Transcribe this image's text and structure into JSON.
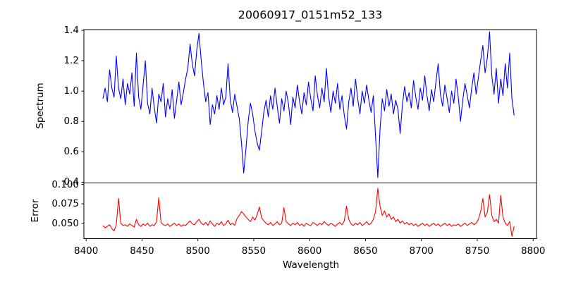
{
  "figure": {
    "title": "20060917_0151m52_133",
    "xlabel": "Wavelength",
    "background": "#ffffff",
    "spine_color": "#000000",
    "text_color": "#000000"
  },
  "chart_data": [
    {
      "type": "line",
      "name": "spectrum",
      "ylabel": "Spectrum",
      "color": "#0000ff",
      "xlim": [
        8398,
        8803
      ],
      "ylim": [
        0.395,
        1.405
      ],
      "yticks": [
        0.4,
        0.6,
        0.8,
        1.0,
        1.2,
        1.4
      ],
      "ytick_labels": [
        "0.4",
        "0.6",
        "0.8",
        "1.0",
        "1.2",
        "1.4"
      ],
      "xticks": [
        8400,
        8450,
        8500,
        8550,
        8600,
        8650,
        8700,
        8750,
        8800
      ],
      "xtick_labels": [],
      "grid": false,
      "x_start": 8415,
      "x_step": 2,
      "values": [
        0.95,
        1.02,
        0.93,
        1.14,
        1.02,
        0.96,
        1.23,
        1.02,
        0.95,
        1.08,
        0.91,
        1.05,
        0.98,
        1.12,
        0.9,
        1.25,
        0.96,
        0.88,
        1.04,
        1.2,
        0.92,
        0.85,
        1.02,
        0.89,
        0.79,
        0.98,
        0.93,
        1.05,
        0.83,
        0.95,
        0.88,
        1.01,
        0.82,
        0.94,
        1.06,
        0.91,
        0.99,
        1.08,
        1.15,
        1.31,
        1.18,
        1.1,
        1.27,
        1.38,
        1.2,
        1.05,
        0.93,
        0.99,
        0.78,
        0.91,
        0.85,
        0.97,
        0.88,
        1.02,
        0.91,
        0.96,
        1.18,
        0.94,
        0.86,
        0.98,
        0.9,
        0.82,
        0.66,
        0.46,
        0.62,
        0.8,
        0.92,
        0.85,
        0.74,
        0.66,
        0.61,
        0.73,
        0.86,
        0.94,
        0.83,
        0.97,
        0.88,
        1.02,
        0.9,
        0.79,
        0.95,
        0.87,
        1.0,
        0.92,
        0.78,
        0.96,
        0.89,
        1.04,
        0.93,
        0.85,
        0.99,
        0.91,
        1.06,
        0.95,
        0.87,
        1.1,
        0.97,
        0.89,
        1.02,
        0.93,
        1.15,
        0.96,
        0.86,
        1.0,
        0.92,
        1.05,
        0.88,
        0.97,
        0.84,
        0.75,
        0.93,
        1.02,
        0.9,
        1.08,
        0.95,
        0.85,
        1.0,
        0.92,
        1.04,
        0.94,
        0.86,
        0.97,
        0.7,
        0.43,
        0.75,
        0.95,
        0.87,
        1.01,
        0.9,
        0.98,
        0.85,
        0.94,
        0.88,
        0.72,
        0.91,
        1.03,
        0.93,
        0.99,
        0.89,
        1.07,
        0.96,
        0.88,
        1.02,
        0.94,
        1.1,
        0.97,
        0.87,
        1.01,
        0.93,
        1.06,
        1.18,
        0.98,
        0.9,
        1.04,
        0.95,
        0.86,
        1.0,
        0.92,
        1.08,
        0.96,
        0.8,
        0.94,
        1.05,
        0.97,
        0.89,
        1.02,
        1.12,
        0.98,
        1.09,
        1.2,
        1.3,
        1.12,
        1.22,
        1.39,
        1.1,
        0.98,
        1.15,
        0.92,
        1.08,
        0.97,
        1.18,
        1.02,
        1.25,
        0.95,
        0.84
      ]
    },
    {
      "type": "line",
      "name": "error",
      "ylabel": "Error",
      "color": "#ff0000",
      "xlim": [
        8398,
        8803
      ],
      "ylim": [
        0.03,
        0.102
      ],
      "yticks": [
        0.05,
        0.075,
        0.1
      ],
      "ytick_labels": [
        "0.050",
        "0.075",
        "0.100"
      ],
      "xticks": [
        8400,
        8450,
        8500,
        8550,
        8600,
        8650,
        8700,
        8750,
        8800
      ],
      "xtick_labels": [
        "8400",
        "8450",
        "8500",
        "8550",
        "8600",
        "8650",
        "8700",
        "8750",
        "8800"
      ],
      "grid": false,
      "x_start": 8415,
      "x_step": 2,
      "values": [
        0.047,
        0.044,
        0.046,
        0.048,
        0.043,
        0.04,
        0.048,
        0.082,
        0.05,
        0.047,
        0.048,
        0.046,
        0.049,
        0.047,
        0.045,
        0.055,
        0.048,
        0.046,
        0.049,
        0.047,
        0.05,
        0.046,
        0.048,
        0.047,
        0.052,
        0.083,
        0.051,
        0.048,
        0.047,
        0.049,
        0.046,
        0.048,
        0.05,
        0.047,
        0.049,
        0.046,
        0.048,
        0.047,
        0.05,
        0.053,
        0.049,
        0.048,
        0.052,
        0.055,
        0.05,
        0.048,
        0.051,
        0.047,
        0.053,
        0.049,
        0.046,
        0.05,
        0.048,
        0.052,
        0.047,
        0.049,
        0.054,
        0.048,
        0.05,
        0.047,
        0.056,
        0.06,
        0.065,
        0.062,
        0.058,
        0.055,
        0.052,
        0.058,
        0.054,
        0.061,
        0.071,
        0.057,
        0.053,
        0.05,
        0.048,
        0.051,
        0.047,
        0.049,
        0.052,
        0.048,
        0.05,
        0.07,
        0.052,
        0.049,
        0.047,
        0.05,
        0.048,
        0.051,
        0.047,
        0.049,
        0.046,
        0.05,
        0.048,
        0.047,
        0.051,
        0.049,
        0.047,
        0.05,
        0.048,
        0.052,
        0.049,
        0.047,
        0.05,
        0.048,
        0.046,
        0.049,
        0.051,
        0.048,
        0.053,
        0.072,
        0.055,
        0.049,
        0.047,
        0.05,
        0.048,
        0.051,
        0.047,
        0.049,
        0.052,
        0.048,
        0.05,
        0.055,
        0.065,
        0.095,
        0.072,
        0.06,
        0.066,
        0.058,
        0.062,
        0.055,
        0.058,
        0.052,
        0.055,
        0.05,
        0.053,
        0.049,
        0.051,
        0.048,
        0.05,
        0.047,
        0.049,
        0.046,
        0.048,
        0.05,
        0.047,
        0.049,
        0.046,
        0.048,
        0.05,
        0.047,
        0.049,
        0.046,
        0.048,
        0.05,
        0.047,
        0.049,
        0.046,
        0.048,
        0.047,
        0.049,
        0.046,
        0.048,
        0.05,
        0.047,
        0.049,
        0.051,
        0.048,
        0.05,
        0.055,
        0.065,
        0.082,
        0.058,
        0.064,
        0.087,
        0.06,
        0.052,
        0.055,
        0.05,
        0.086,
        0.058,
        0.05,
        0.047,
        0.052,
        0.033,
        0.046
      ]
    }
  ]
}
